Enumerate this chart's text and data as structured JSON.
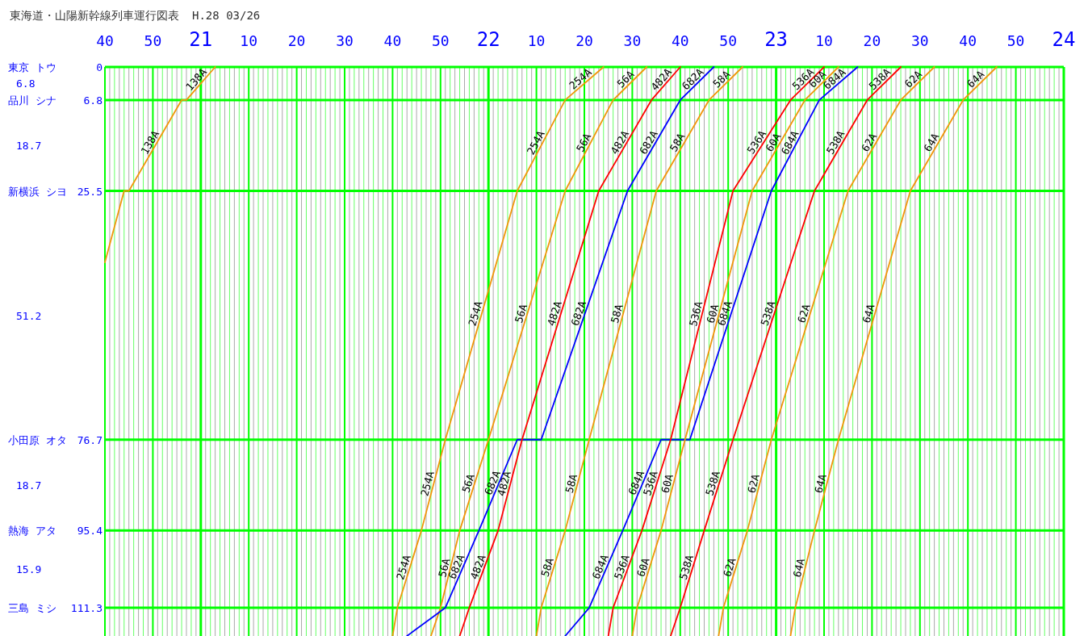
{
  "chart_data": {
    "type": "line",
    "title": "東海道・山陽新幹線列車運行図表",
    "subtitle": "H.28 03/26",
    "grid": true,
    "xlim": [
      "--03-26T20:40",
      "--03-27T00:00"
    ],
    "ylim": [
      117.1,
      0
    ],
    "xticks": [
      {
        "value": "--03-26T20:40",
        "label": "40"
      },
      {
        "value": "--03-26T20:41",
        "label": null
      },
      {
        "value": "--03-26T20:42",
        "label": null
      },
      {
        "value": "--03-26T20:43",
        "label": null
      },
      {
        "value": "--03-26T20:44",
        "label": null
      },
      {
        "value": "--03-26T20:45",
        "label": null
      },
      {
        "value": "--03-26T20:46",
        "label": null
      },
      {
        "value": "--03-26T20:47",
        "label": null
      },
      {
        "value": "--03-26T20:48",
        "label": null
      },
      {
        "value": "--03-26T20:49",
        "label": null
      },
      {
        "value": "--03-26T20:50",
        "label": "50"
      },
      {
        "value": "--03-26T20:51",
        "label": null
      },
      {
        "value": "--03-26T20:52",
        "label": null
      },
      {
        "value": "--03-26T20:53",
        "label": null
      },
      {
        "value": "--03-26T20:54",
        "label": null
      },
      {
        "value": "--03-26T20:55",
        "label": null
      },
      {
        "value": "--03-26T20:56",
        "label": null
      },
      {
        "value": "--03-26T20:57",
        "label": null
      },
      {
        "value": "--03-26T20:58",
        "label": null
      },
      {
        "value": "--03-26T20:59",
        "label": null
      },
      {
        "value": "--03-26T21:00",
        "label": "21"
      },
      {
        "value": "--03-26T21:01",
        "label": null
      },
      {
        "value": "--03-26T21:02",
        "label": null
      },
      {
        "value": "--03-26T21:03",
        "label": null
      },
      {
        "value": "--03-26T21:04",
        "label": null
      },
      {
        "value": "--03-26T21:05",
        "label": null
      },
      {
        "value": "--03-26T21:06",
        "label": null
      },
      {
        "value": "--03-26T21:07",
        "label": null
      },
      {
        "value": "--03-26T21:08",
        "label": null
      },
      {
        "value": "--03-26T21:09",
        "label": null
      },
      {
        "value": "--03-26T21:10",
        "label": "10"
      },
      {
        "value": "--03-26T21:11",
        "label": null
      },
      {
        "value": "--03-26T21:12",
        "label": null
      },
      {
        "value": "--03-26T21:13",
        "label": null
      },
      {
        "value": "--03-26T21:14",
        "label": null
      },
      {
        "value": "--03-26T21:15",
        "label": null
      },
      {
        "value": "--03-26T21:16",
        "label": null
      },
      {
        "value": "--03-26T21:17",
        "label": null
      },
      {
        "value": "--03-26T21:18",
        "label": null
      },
      {
        "value": "--03-26T21:19",
        "label": null
      },
      {
        "value": "--03-26T21:20",
        "label": "20"
      },
      {
        "value": "--03-26T21:21",
        "label": null
      },
      {
        "value": "--03-26T21:22",
        "label": null
      },
      {
        "value": "--03-26T21:23",
        "label": null
      },
      {
        "value": "--03-26T21:24",
        "label": null
      },
      {
        "value": "--03-26T21:25",
        "label": null
      },
      {
        "value": "--03-26T21:26",
        "label": null
      },
      {
        "value": "--03-26T21:27",
        "label": null
      },
      {
        "value": "--03-26T21:28",
        "label": null
      },
      {
        "value": "--03-26T21:29",
        "label": null
      },
      {
        "value": "--03-26T21:30",
        "label": "30"
      },
      {
        "value": "--03-26T21:31",
        "label": null
      },
      {
        "value": "--03-26T21:32",
        "label": null
      },
      {
        "value": "--03-26T21:33",
        "label": null
      },
      {
        "value": "--03-26T21:34",
        "label": null
      },
      {
        "value": "--03-26T21:35",
        "label": null
      },
      {
        "value": "--03-26T21:36",
        "label": null
      },
      {
        "value": "--03-26T21:37",
        "label": null
      },
      {
        "value": "--03-26T21:38",
        "label": null
      },
      {
        "value": "--03-26T21:39",
        "label": null
      },
      {
        "value": "--03-26T21:40",
        "label": "40"
      },
      {
        "value": "--03-26T21:41",
        "label": null
      },
      {
        "value": "--03-26T21:42",
        "label": null
      },
      {
        "value": "--03-26T21:43",
        "label": null
      },
      {
        "value": "--03-26T21:44",
        "label": null
      },
      {
        "value": "--03-26T21:45",
        "label": null
      },
      {
        "value": "--03-26T21:46",
        "label": null
      },
      {
        "value": "--03-26T21:47",
        "label": null
      },
      {
        "value": "--03-26T21:48",
        "label": null
      },
      {
        "value": "--03-26T21:49",
        "label": null
      },
      {
        "value": "--03-26T21:50",
        "label": "50"
      },
      {
        "value": "--03-26T21:51",
        "label": null
      },
      {
        "value": "--03-26T21:52",
        "label": null
      },
      {
        "value": "--03-26T21:53",
        "label": null
      },
      {
        "value": "--03-26T21:54",
        "label": null
      },
      {
        "value": "--03-26T21:55",
        "label": null
      },
      {
        "value": "--03-26T21:56",
        "label": null
      },
      {
        "value": "--03-26T21:57",
        "label": null
      },
      {
        "value": "--03-26T21:58",
        "label": null
      },
      {
        "value": "--03-26T21:59",
        "label": null
      },
      {
        "value": "--03-26T22:00",
        "label": "22"
      },
      {
        "value": "--03-26T22:01",
        "label": null
      },
      {
        "value": "--03-26T22:02",
        "label": null
      },
      {
        "value": "--03-26T22:03",
        "label": null
      },
      {
        "value": "--03-26T22:04",
        "label": null
      },
      {
        "value": "--03-26T22:05",
        "label": null
      },
      {
        "value": "--03-26T22:06",
        "label": null
      },
      {
        "value": "--03-26T22:07",
        "label": null
      },
      {
        "value": "--03-26T22:08",
        "label": null
      },
      {
        "value": "--03-26T22:09",
        "label": null
      },
      {
        "value": "--03-26T22:10",
        "label": "10"
      },
      {
        "value": "--03-26T22:11",
        "label": null
      },
      {
        "value": "--03-26T22:12",
        "label": null
      },
      {
        "value": "--03-26T22:13",
        "label": null
      },
      {
        "value": "--03-26T22:14",
        "label": null
      },
      {
        "value": "--03-26T22:15",
        "label": null
      },
      {
        "value": "--03-26T22:16",
        "label": null
      },
      {
        "value": "--03-26T22:17",
        "label": null
      },
      {
        "value": "--03-26T22:18",
        "label": null
      },
      {
        "value": "--03-26T22:19",
        "label": null
      },
      {
        "value": "--03-26T22:20",
        "label": "20"
      },
      {
        "value": "--03-26T22:21",
        "label": null
      },
      {
        "value": "--03-26T22:22",
        "label": null
      },
      {
        "value": "--03-26T22:23",
        "label": null
      },
      {
        "value": "--03-26T22:24",
        "label": null
      },
      {
        "value": "--03-26T22:25",
        "label": null
      },
      {
        "value": "--03-26T22:26",
        "label": null
      },
      {
        "value": "--03-26T22:27",
        "label": null
      },
      {
        "value": "--03-26T22:28",
        "label": null
      },
      {
        "value": "--03-26T22:29",
        "label": null
      },
      {
        "value": "--03-26T22:30",
        "label": "30"
      },
      {
        "value": "--03-26T22:31",
        "label": null
      },
      {
        "value": "--03-26T22:32",
        "label": null
      },
      {
        "value": "--03-26T22:33",
        "label": null
      },
      {
        "value": "--03-26T22:34",
        "label": null
      },
      {
        "value": "--03-26T22:35",
        "label": null
      },
      {
        "value": "--03-26T22:36",
        "label": null
      },
      {
        "value": "--03-26T22:37",
        "label": null
      },
      {
        "value": "--03-26T22:38",
        "label": null
      },
      {
        "value": "--03-26T22:39",
        "label": null
      },
      {
        "value": "--03-26T22:40",
        "label": "40"
      },
      {
        "value": "--03-26T22:41",
        "label": null
      },
      {
        "value": "--03-26T22:42",
        "label": null
      },
      {
        "value": "--03-26T22:43",
        "label": null
      },
      {
        "value": "--03-26T22:44",
        "label": null
      },
      {
        "value": "--03-26T22:45",
        "label": null
      },
      {
        "value": "--03-26T22:46",
        "label": null
      },
      {
        "value": "--03-26T22:47",
        "label": null
      },
      {
        "value": "--03-26T22:48",
        "label": null
      },
      {
        "value": "--03-26T22:49",
        "label": null
      },
      {
        "value": "--03-26T22:50",
        "label": "50"
      },
      {
        "value": "--03-26T22:51",
        "label": null
      },
      {
        "value": "--03-26T22:52",
        "label": null
      },
      {
        "value": "--03-26T22:53",
        "label": null
      },
      {
        "value": "--03-26T22:54",
        "label": null
      },
      {
        "value": "--03-26T22:55",
        "label": null
      },
      {
        "value": "--03-26T22:56",
        "label": null
      },
      {
        "value": "--03-26T22:57",
        "label": null
      },
      {
        "value": "--03-26T22:58",
        "label": null
      },
      {
        "value": "--03-26T22:59",
        "label": null
      },
      {
        "value": "--03-26T23:00",
        "label": "23"
      },
      {
        "value": "--03-26T23:01",
        "label": null
      },
      {
        "value": "--03-26T23:02",
        "label": null
      },
      {
        "value": "--03-26T23:03",
        "label": null
      },
      {
        "value": "--03-26T23:04",
        "label": null
      },
      {
        "value": "--03-26T23:05",
        "label": null
      },
      {
        "value": "--03-26T23:06",
        "label": null
      },
      {
        "value": "--03-26T23:07",
        "label": null
      },
      {
        "value": "--03-26T23:08",
        "label": null
      },
      {
        "value": "--03-26T23:09",
        "label": null
      },
      {
        "value": "--03-26T23:10",
        "label": "10"
      },
      {
        "value": "--03-26T23:11",
        "label": null
      },
      {
        "value": "--03-26T23:12",
        "label": null
      },
      {
        "value": "--03-26T23:13",
        "label": null
      },
      {
        "value": "--03-26T23:14",
        "label": null
      },
      {
        "value": "--03-26T23:15",
        "label": null
      },
      {
        "value": "--03-26T23:16",
        "label": null
      },
      {
        "value": "--03-26T23:17",
        "label": null
      },
      {
        "value": "--03-26T23:18",
        "label": null
      },
      {
        "value": "--03-26T23:19",
        "label": null
      },
      {
        "value": "--03-26T23:20",
        "label": "20"
      },
      {
        "value": "--03-26T23:21",
        "label": null
      },
      {
        "value": "--03-26T23:22",
        "label": null
      },
      {
        "value": "--03-26T23:23",
        "label": null
      },
      {
        "value": "--03-26T23:24",
        "label": null
      },
      {
        "value": "--03-26T23:25",
        "label": null
      },
      {
        "value": "--03-26T23:26",
        "label": null
      },
      {
        "value": "--03-26T23:27",
        "label": null
      },
      {
        "value": "--03-26T23:28",
        "label": null
      },
      {
        "value": "--03-26T23:29",
        "label": null
      },
      {
        "value": "--03-26T23:30",
        "label": "30"
      },
      {
        "value": "--03-26T23:31",
        "label": null
      },
      {
        "value": "--03-26T23:32",
        "label": null
      },
      {
        "value": "--03-26T23:33",
        "label": null
      },
      {
        "value": "--03-26T23:34",
        "label": null
      },
      {
        "value": "--03-26T23:35",
        "label": null
      },
      {
        "value": "--03-26T23:36",
        "label": null
      },
      {
        "value": "--03-26T23:37",
        "label": null
      },
      {
        "value": "--03-26T23:38",
        "label": null
      },
      {
        "value": "--03-26T23:39",
        "label": null
      },
      {
        "value": "--03-26T23:40",
        "label": "40"
      },
      {
        "value": "--03-26T23:41",
        "label": null
      },
      {
        "value": "--03-26T23:42",
        "label": null
      },
      {
        "value": "--03-26T23:43",
        "label": null
      },
      {
        "value": "--03-26T23:44",
        "label": null
      },
      {
        "value": "--03-26T23:45",
        "label": null
      },
      {
        "value": "--03-26T23:46",
        "label": null
      },
      {
        "value": "--03-26T23:47",
        "label": null
      },
      {
        "value": "--03-26T23:48",
        "label": null
      },
      {
        "value": "--03-26T23:49",
        "label": null
      },
      {
        "value": "--03-26T23:50",
        "label": "50"
      },
      {
        "value": "--03-26T23:51",
        "label": null
      },
      {
        "value": "--03-26T23:52",
        "label": null
      },
      {
        "value": "--03-26T23:53",
        "label": null
      },
      {
        "value": "--03-26T23:54",
        "label": null
      },
      {
        "value": "--03-26T23:55",
        "label": null
      },
      {
        "value": "--03-26T23:56",
        "label": null
      },
      {
        "value": "--03-26T23:57",
        "label": null
      },
      {
        "value": "--03-26T23:58",
        "label": null
      },
      {
        "value": "--03-26T23:59",
        "label": null
      },
      {
        "value": "--03-27T00:00",
        "label": "24"
      }
    ],
    "yticks": [
      0,
      6.8,
      25.5,
      76.7,
      95.4,
      111.3
    ],
    "annotations": [
      "東京 トウ",
      "品川 シナ",
      "新横浜 シヨ",
      "小田原 オタ",
      "熱海 アタ",
      "三島 ミシ",
      "6.8",
      "18.7",
      "51.2",
      "18.7",
      "15.9"
    ],
    "series": [
      {
        "name": "138A",
        "color": "#f0960a",
        "x": [
          "--03-26T20:40",
          "--03-26T20:44",
          "--03-26T20:45",
          "--03-26T20:56",
          "--03-26T20:57",
          "--03-26T21:03"
        ],
        "values": [
          40.2,
          25.5,
          25.5,
          6.8,
          6.8,
          0
        ]
      },
      {
        "name": "254A",
        "color": "#f0960a",
        "x": [
          "--03-26T21:40",
          "--03-26T21:41",
          "--03-26T21:46",
          "--03-26T21:51",
          "--03-26T22:06",
          "--03-26T22:16",
          "--03-26T22:24"
        ],
        "values": [
          117.1,
          111.3,
          95.4,
          76.7,
          25.5,
          6.8,
          0
        ]
      },
      {
        "name": "56A",
        "color": "#f0960a",
        "x": [
          "--03-26T21:48",
          "--03-26T21:50",
          "--03-26T21:54",
          "--03-26T22:00",
          "--03-26T22:16",
          "--03-26T22:26",
          "--03-26T22:33"
        ],
        "values": [
          117.1,
          111.3,
          95.4,
          76.7,
          25.5,
          6.8,
          0
        ]
      },
      {
        "name": "682A",
        "color": "#0000ff",
        "x": [
          "--03-26T21:43",
          "--03-26T21:51",
          "--03-26T21:58",
          "--03-26T22:06",
          "--03-26T22:11",
          "--03-26T22:29",
          "--03-26T22:40",
          "--03-26T22:47"
        ],
        "values": [
          117.1,
          111.3,
          95.4,
          76.7,
          76.7,
          25.5,
          6.8,
          0
        ]
      },
      {
        "name": "482A",
        "color": "#ff0000",
        "x": [
          "--03-26T21:54",
          "--03-26T21:56",
          "--03-26T22:02",
          "--03-26T22:07",
          "--03-26T22:23",
          "--03-26T22:34",
          "--03-26T22:40"
        ],
        "values": [
          117.1,
          111.3,
          95.4,
          76.7,
          25.5,
          6.8,
          0
        ]
      },
      {
        "name": "58A",
        "color": "#f0960a",
        "x": [
          "--03-26T22:10",
          "--03-26T22:11",
          "--03-26T22:16",
          "--03-26T22:21",
          "--03-26T22:35",
          "--03-26T22:46",
          "--03-26T22:53"
        ],
        "values": [
          117.1,
          111.3,
          95.4,
          76.7,
          25.5,
          6.8,
          0
        ]
      },
      {
        "name": "684A",
        "color": "#0000ff",
        "x": [
          "--03-26T22:16",
          "--03-26T22:21",
          "--03-26T22:28",
          "--03-26T22:36",
          "--03-26T22:42",
          "--03-26T22:59",
          "--03-26T23:09",
          "--03-26T23:17"
        ],
        "values": [
          117.1,
          111.3,
          95.4,
          76.7,
          76.7,
          25.5,
          6.8,
          0
        ]
      },
      {
        "name": "536A",
        "color": "#ff0000",
        "x": [
          "--03-26T22:25",
          "--03-26T22:26",
          "--03-26T22:32",
          "--03-26T22:38",
          "--03-26T22:51",
          "--03-26T23:03",
          "--03-26T23:10"
        ],
        "values": [
          117.1,
          111.3,
          95.4,
          76.7,
          25.5,
          6.8,
          0
        ]
      },
      {
        "name": "60A",
        "color": "#f0960a",
        "x": [
          "--03-26T22:30",
          "--03-26T22:31",
          "--03-26T22:36",
          "--03-26T22:41",
          "--03-26T22:55",
          "--03-26T23:06",
          "--03-26T23:13"
        ],
        "values": [
          117.1,
          111.3,
          95.4,
          76.7,
          25.5,
          6.8,
          0
        ]
      },
      {
        "name": "538A",
        "color": "#ff0000",
        "x": [
          "--03-26T22:38",
          "--03-26T22:40",
          "--03-26T22:45",
          "--03-26T22:51",
          "--03-26T23:08",
          "--03-26T23:19",
          "--03-26T23:26"
        ],
        "values": [
          117.1,
          111.3,
          95.4,
          76.7,
          25.5,
          6.8,
          0
        ]
      },
      {
        "name": "62A",
        "color": "#f0960a",
        "x": [
          "--03-26T22:48",
          "--03-26T22:49",
          "--03-26T22:54",
          "--03-26T22:59",
          "--03-26T23:15",
          "--03-26T23:26",
          "--03-26T23:33"
        ],
        "values": [
          117.1,
          111.3,
          95.4,
          76.7,
          25.5,
          6.8,
          0
        ]
      },
      {
        "name": "64A",
        "color": "#f0960a",
        "x": [
          "--03-26T23:03",
          "--03-26T23:04",
          "--03-26T23:08",
          "--03-26T23:13",
          "--03-26T23:28",
          "--03-26T23:39",
          "--03-26T23:46"
        ],
        "values": [
          117.1,
          111.3,
          95.4,
          76.7,
          25.5,
          6.8,
          0
        ]
      }
    ]
  }
}
